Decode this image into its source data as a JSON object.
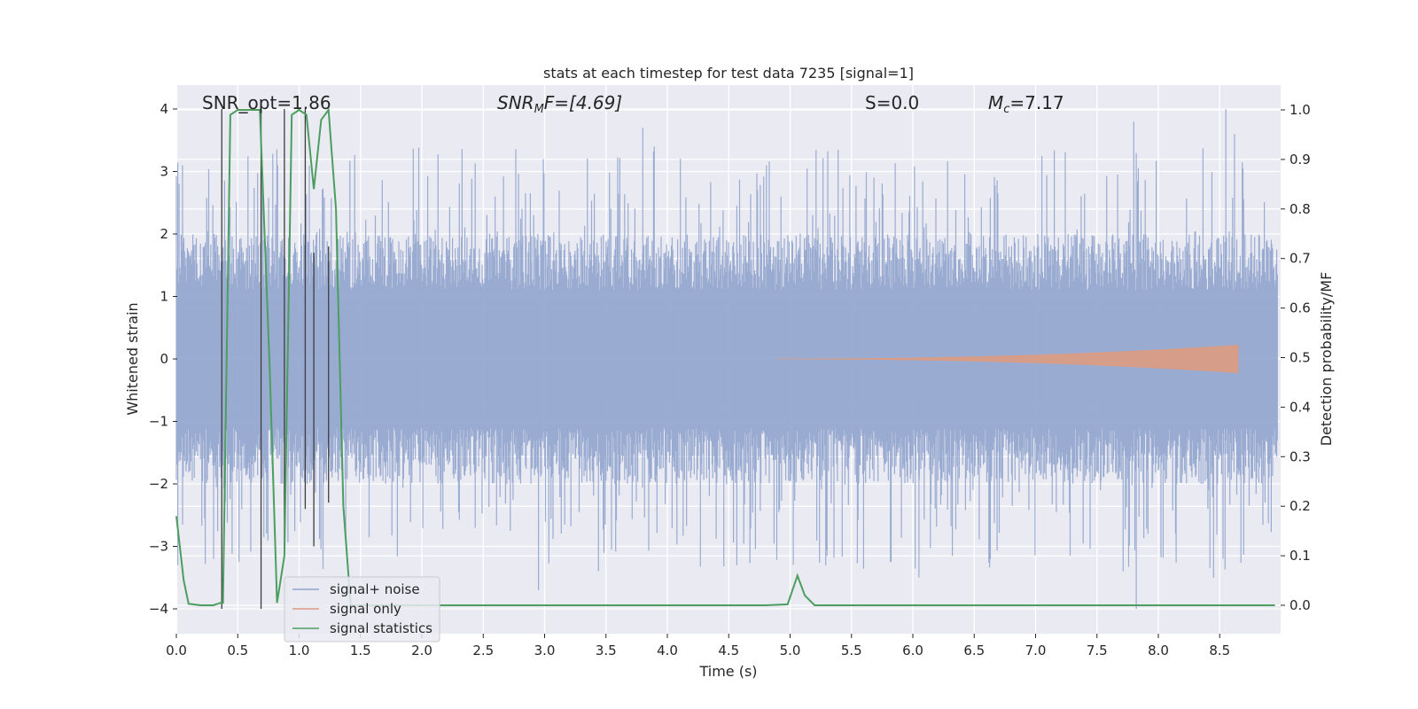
{
  "chart_data": {
    "type": "line",
    "title": "stats at each timestep for test data 7235 [signal=1]",
    "xlabel": "Time (s)",
    "ylabel": "Whitened strain",
    "y2label": "Detection probability/MF",
    "xlim": [
      0.0,
      9.0
    ],
    "ylim": [
      -4.4,
      4.4
    ],
    "y2lim": [
      -0.05,
      1.05
    ],
    "xticks": [
      "0.0",
      "0.5",
      "1.0",
      "1.5",
      "2.0",
      "2.5",
      "3.0",
      "3.5",
      "4.0",
      "4.5",
      "5.0",
      "5.5",
      "6.0",
      "6.5",
      "7.0",
      "7.5",
      "8.0",
      "8.5"
    ],
    "yticks": [
      "4",
      "3",
      "2",
      "1",
      "0",
      "−1",
      "−2",
      "−3",
      "−4"
    ],
    "y2ticks": [
      "1.0",
      "0.9",
      "0.8",
      "0.7",
      "0.6",
      "0.5",
      "0.4",
      "0.3",
      "0.2",
      "0.1",
      "0.0"
    ],
    "annotations": [
      {
        "text": "SNR_opt=1.86",
        "x": 0.2,
        "y": 4.05
      },
      {
        "text": "SNR",
        "sub": "M",
        "tail": "F=[4.69]",
        "italic": true,
        "x": 2.6,
        "y": 4.05
      },
      {
        "text": "S=0.0",
        "italic_prefix": "S",
        "x": 5.6,
        "y": 4.05
      },
      {
        "text": "M",
        "sub": "c",
        "tail": "=7.17",
        "italic": true,
        "x": 6.6,
        "y": 4.05
      }
    ],
    "legend": {
      "position": "lower-left",
      "entries": [
        {
          "label": "signal+ noise",
          "color": "#8fa3cc"
        },
        {
          "label": "signal only",
          "color": "#dd9b81"
        },
        {
          "label": "signal statistics",
          "color": "#4c9e5f"
        }
      ]
    },
    "series": [
      {
        "name": "signal+ noise",
        "color": "#96a8cf",
        "envelope": {
          "typical_max": 2.0,
          "peak_max": 4.0,
          "typical_min": -2.0,
          "peak_min": -4.0
        }
      },
      {
        "name": "signal only",
        "color": "#dd9b81",
        "chirp": {
          "start": 4.9,
          "end": 8.65,
          "peak_amplitude": 0.22
        }
      },
      {
        "name": "signal statistics",
        "color": "#4c9e5f",
        "axis": "right",
        "x": [
          0.0,
          0.06,
          0.1,
          0.2,
          0.3,
          0.36,
          0.38,
          0.44,
          0.5,
          0.6,
          0.68,
          0.76,
          0.82,
          0.88,
          0.94,
          1.0,
          1.06,
          1.12,
          1.18,
          1.24,
          1.3,
          1.36,
          1.42,
          1.5,
          2.0,
          3.0,
          4.0,
          4.8,
          4.98,
          5.06,
          5.12,
          5.2,
          5.5,
          6.0,
          7.0,
          8.0,
          8.95
        ],
        "y": [
          0.18,
          0.05,
          0.003,
          0.0,
          0.0,
          0.005,
          0.005,
          0.99,
          1.0,
          1.0,
          1.0,
          0.48,
          0.005,
          0.1,
          0.99,
          1.0,
          0.99,
          0.84,
          0.98,
          1.0,
          0.8,
          0.2,
          0.0,
          0.0,
          0.0,
          0.0,
          0.0,
          0.0,
          0.002,
          0.06,
          0.02,
          0.0,
          0.0,
          0.0,
          0.0,
          0.0,
          0.0
        ]
      },
      {
        "name": "peak markers",
        "color": "#3d3d3d",
        "vlines_x": [
          0.37,
          0.69,
          0.88,
          1.05,
          1.12,
          1.24
        ],
        "vline_ymin": [
          -4.0,
          -4.0,
          -3.1,
          -2.4,
          -3.0,
          -2.3
        ],
        "vline_ymax": [
          4.0,
          4.0,
          4.0,
          4.0,
          1.7,
          1.8
        ]
      }
    ]
  }
}
